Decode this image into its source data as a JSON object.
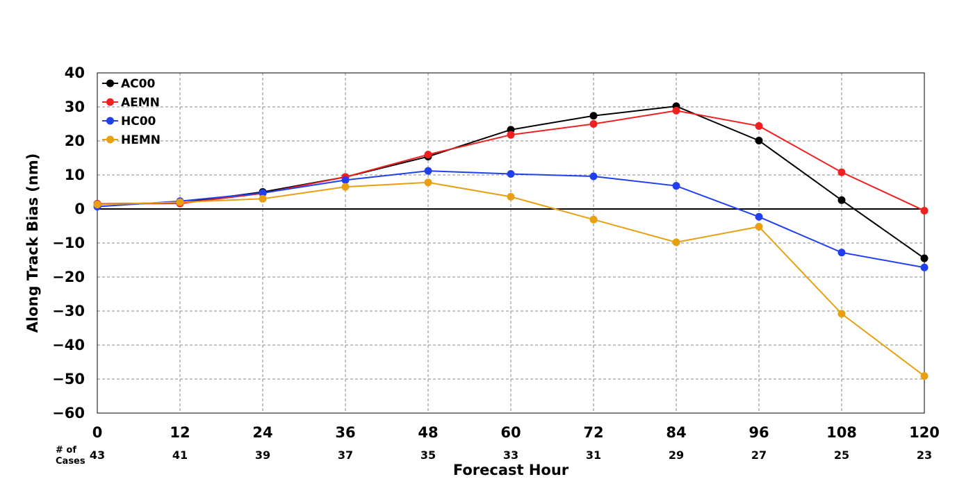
{
  "chart_data": {
    "type": "line",
    "title": "",
    "xlabel": "Forecast Hour",
    "ylabel": "Along Track Bias (nm)",
    "x": [
      0,
      12,
      24,
      36,
      48,
      60,
      72,
      84,
      96,
      108,
      120
    ],
    "x_tick_labels": [
      "0",
      "12",
      "24",
      "36",
      "48",
      "60",
      "72",
      "84",
      "96",
      "108",
      "120"
    ],
    "y_tick_labels": [
      "40",
      "30",
      "20",
      "10",
      "0",
      "−10",
      "−20",
      "−30",
      "−40",
      "−50",
      "−60"
    ],
    "y_ticks": [
      40,
      30,
      20,
      10,
      0,
      -10,
      -20,
      -30,
      -40,
      -50,
      -60
    ],
    "xlim": [
      0,
      120
    ],
    "ylim": [
      -60,
      40
    ],
    "grid": true,
    "zero_line": true,
    "legend_position": "top-left",
    "cases_title": [
      "# of",
      "Cases"
    ],
    "cases": [
      "43",
      "41",
      "39",
      "37",
      "35",
      "33",
      "31",
      "29",
      "27",
      "25",
      "23"
    ],
    "series": [
      {
        "name": "AC00",
        "color": "#000000",
        "values": [
          1.5,
          1.8,
          5.0,
          9.4,
          15.4,
          23.3,
          27.4,
          30.2,
          20.1,
          2.6,
          -14.5
        ]
      },
      {
        "name": "AEMN",
        "color": "#f02020",
        "values": [
          1.5,
          1.6,
          4.6,
          9.4,
          16.0,
          21.8,
          25.0,
          28.9,
          24.4,
          10.8,
          -0.5
        ]
      },
      {
        "name": "HC00",
        "color": "#2040f0",
        "values": [
          0.7,
          2.3,
          4.7,
          8.5,
          11.2,
          10.3,
          9.6,
          6.8,
          -2.3,
          -12.8,
          -17.2
        ]
      },
      {
        "name": "HEMN",
        "color": "#e8a010",
        "values": [
          1.3,
          2.0,
          3.0,
          6.5,
          7.8,
          3.6,
          -3.1,
          -9.8,
          -5.2,
          -30.8,
          -49.1
        ]
      }
    ]
  }
}
